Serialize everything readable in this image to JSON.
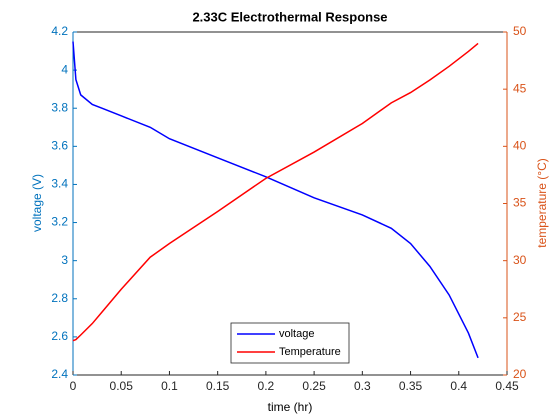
{
  "chart_data": {
    "type": "line",
    "title": "2.33C Electrothermal Response",
    "x_label": "time (hr)",
    "y_label": "voltage (V)",
    "y2_label": "temperature (°C)",
    "x": [
      0,
      0.003,
      0.008,
      0.02,
      0.03,
      0.05,
      0.08,
      0.1,
      0.15,
      0.2,
      0.25,
      0.3,
      0.33,
      0.35,
      0.37,
      0.39,
      0.41,
      0.42
    ],
    "series": [
      {
        "name": "voltage",
        "color": "#0000ff",
        "values": [
          4.15,
          3.95,
          3.87,
          3.82,
          3.8,
          3.76,
          3.7,
          3.64,
          3.54,
          3.44,
          3.33,
          3.24,
          3.17,
          3.09,
          2.97,
          2.82,
          2.62,
          2.49
        ]
      },
      {
        "name": "Temperature",
        "color": "#ff0000",
        "axis": "y2",
        "values": [
          23,
          23.1,
          23.5,
          24.5,
          25.5,
          27.5,
          30.3,
          31.5,
          34.3,
          37.2,
          39.5,
          42,
          43.8,
          44.7,
          45.8,
          47,
          48.3,
          49
        ]
      }
    ],
    "xlim": [
      0,
      0.45
    ],
    "xticks": [
      0,
      0.05,
      0.1,
      0.15,
      0.2,
      0.25,
      0.3,
      0.35,
      0.4,
      0.45
    ],
    "ylim": [
      2.4,
      4.2
    ],
    "yticks": [
      2.4,
      2.6,
      2.8,
      3,
      3.2,
      3.4,
      3.6,
      3.8,
      4,
      4.2
    ],
    "y2lim": [
      20,
      50
    ],
    "y2ticks": [
      20,
      25,
      30,
      35,
      40,
      45,
      50
    ],
    "y_axis_color": "#0072bd",
    "y2_axis_color": "#d95319",
    "legend": "lower center",
    "grid": false
  }
}
